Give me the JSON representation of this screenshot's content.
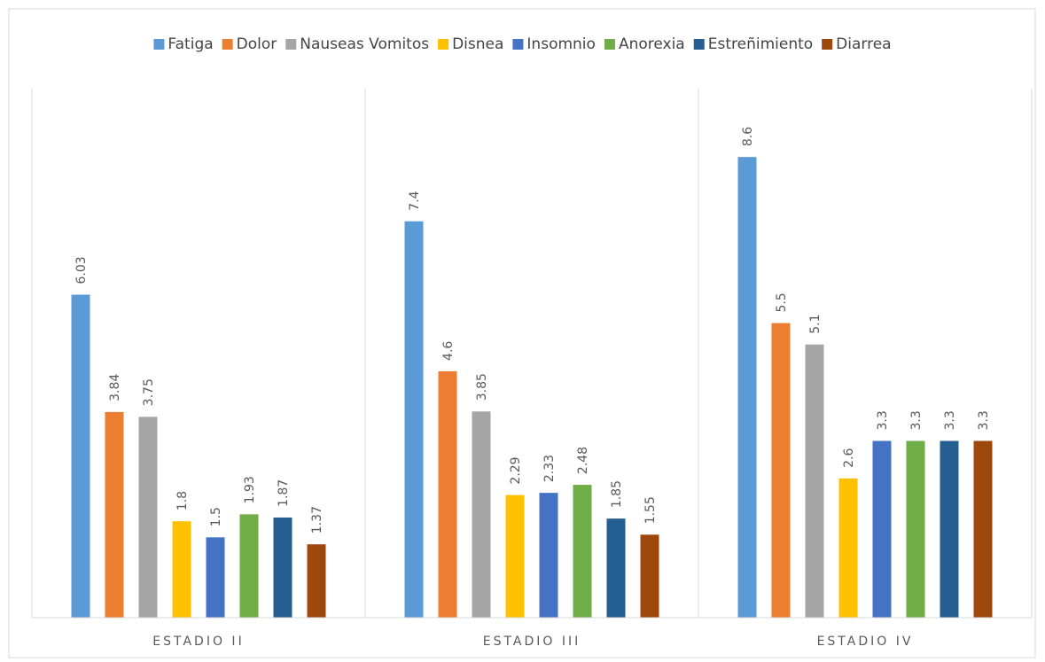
{
  "chart_data": {
    "type": "bar",
    "title": "",
    "xlabel": "",
    "ylabel": "",
    "ylim": [
      0,
      9.5
    ],
    "grid": false,
    "legend_position": "top",
    "categories": [
      "ESTADIO II",
      "ESTADIO III",
      "ESTADIO IV"
    ],
    "series": [
      {
        "name": "Fatiga",
        "color": "#5b9bd5",
        "values": [
          6.03,
          7.4,
          8.6
        ]
      },
      {
        "name": "Dolor",
        "color": "#ed7d31",
        "values": [
          3.84,
          4.6,
          5.5
        ]
      },
      {
        "name": "Nauseas Vomitos",
        "color": "#a5a5a5",
        "values": [
          3.75,
          3.85,
          5.1
        ]
      },
      {
        "name": "Disnea",
        "color": "#ffc000",
        "values": [
          1.8,
          2.29,
          2.6
        ]
      },
      {
        "name": "Insomnio",
        "color": "#4472c4",
        "values": [
          1.5,
          2.33,
          3.3
        ]
      },
      {
        "name": "Anorexia",
        "color": "#70ad47",
        "values": [
          1.93,
          2.48,
          3.3
        ]
      },
      {
        "name": "Estreñimiento",
        "color": "#255e91",
        "values": [
          1.87,
          1.85,
          3.3
        ]
      },
      {
        "name": "Diarrea",
        "color": "#9e480e",
        "values": [
          1.37,
          1.55,
          3.3
        ]
      }
    ]
  }
}
